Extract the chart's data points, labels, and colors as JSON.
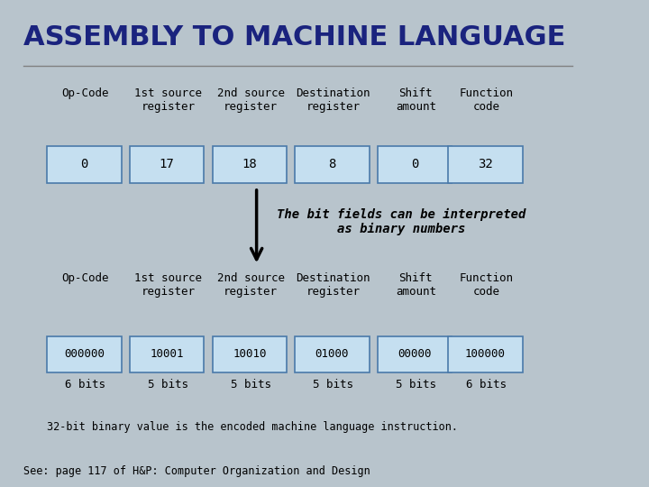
{
  "title": "ASSEMBLY TO MACHINE LANGUAGE",
  "bg_color": "#b8c4cc",
  "title_color": "#1a237e",
  "title_fontsize": 22,
  "cell_fill": "#c5dff0",
  "cell_edge": "#4a7aaa",
  "header_labels_top": [
    "Op-Code",
    "1st source\nregister",
    "2nd source\nregister",
    "Destination\nregister",
    "Shift\namount",
    "Function\ncode"
  ],
  "row1_values": [
    "0",
    "17",
    "18",
    "8",
    "0",
    "32"
  ],
  "header_labels_bot": [
    "Op-Code",
    "1st source\nregister",
    "2nd source\nregister",
    "Destination\nregister",
    "Shift\namount",
    "Function\ncode"
  ],
  "row2_values": [
    "000000",
    "10001",
    "10010",
    "01000",
    "00000",
    "100000"
  ],
  "row2_bits": [
    "6 bits",
    "5 bits",
    "5 bits",
    "5 bits",
    "5 bits",
    "6 bits"
  ],
  "arrow_text": "The bit fields can be interpreted\nas binary numbers",
  "footer_text": "32-bit binary value is the encoded machine language instruction.",
  "see_text": "See: page 117 of H&P: Computer Organization and Design",
  "text_fontsize": 9,
  "cell_fontsize": 10
}
